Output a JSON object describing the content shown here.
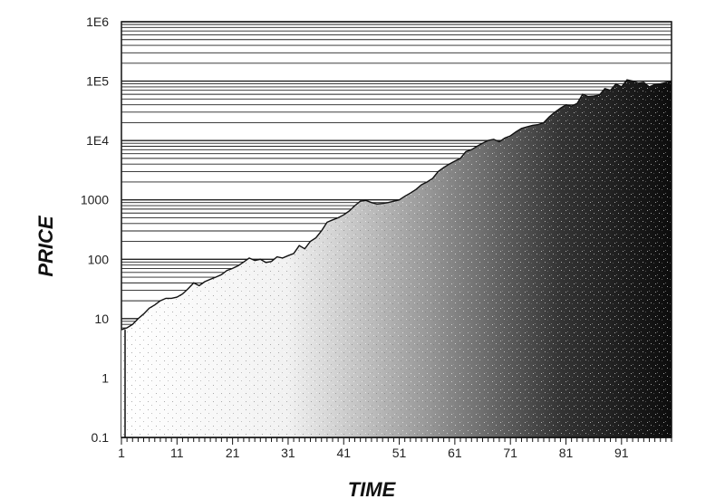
{
  "chart_data": {
    "type": "area",
    "title": "",
    "xlabel": "TIME",
    "ylabel": "PRICE",
    "y_scale": "log",
    "ylim": [
      0.1,
      1000000
    ],
    "xlim": [
      1,
      100
    ],
    "x_tick_labels": [
      "1",
      "11",
      "21",
      "31",
      "41",
      "51",
      "61",
      "71",
      "81",
      "91"
    ],
    "y_tick_labels": [
      "0.1",
      "1",
      "10",
      "100",
      "1000",
      "1E4",
      "1E5",
      "1E6"
    ],
    "grid": "horizontal lines above the price curve",
    "fill": "stippled shading darkening with time",
    "series": [
      {
        "x": [
          1,
          2,
          3,
          4,
          5,
          6,
          7,
          8,
          9,
          10,
          11,
          12,
          13,
          14,
          15,
          16,
          17,
          18,
          19,
          20,
          21,
          22,
          23,
          24,
          25,
          26,
          27,
          28,
          29,
          30,
          31,
          32,
          33,
          34,
          35,
          36,
          37,
          38,
          39,
          40,
          41,
          42,
          43,
          44,
          45,
          46,
          47,
          48,
          49,
          50,
          51,
          52,
          53,
          54,
          55,
          56,
          57,
          58,
          59,
          60,
          61,
          62,
          63,
          64,
          65,
          66,
          67,
          68,
          69,
          70,
          71,
          72,
          73,
          74,
          75,
          76,
          77,
          78,
          79,
          80,
          81,
          82,
          83,
          84,
          85,
          86,
          87,
          88,
          89,
          90,
          91,
          92,
          93,
          94,
          95,
          96,
          97,
          98,
          99,
          100
        ],
        "y": [
          6.5,
          7,
          8,
          10,
          12,
          15,
          17,
          20,
          22,
          22,
          23,
          26,
          32,
          40,
          36,
          42,
          46,
          50,
          55,
          65,
          70,
          78,
          90,
          105,
          95,
          100,
          88,
          92,
          110,
          105,
          115,
          125,
          170,
          150,
          200,
          230,
          300,
          420,
          460,
          500,
          560,
          650,
          800,
          950,
          980,
          900,
          850,
          870,
          900,
          950,
          1000,
          1150,
          1300,
          1500,
          1800,
          2000,
          2300,
          3000,
          3500,
          4000,
          4500,
          5000,
          6500,
          7000,
          8000,
          9000,
          10000,
          10500,
          9500,
          11000,
          12000,
          14000,
          16000,
          17000,
          18000,
          18500,
          20000,
          25000,
          30000,
          35000,
          40000,
          38000,
          42000,
          60000,
          55000,
          56000,
          58000,
          75000,
          70000,
          90000,
          80000,
          105000,
          100000,
          92000,
          95000,
          80000,
          88000,
          90000,
          95000,
          100000
        ]
      }
    ]
  }
}
